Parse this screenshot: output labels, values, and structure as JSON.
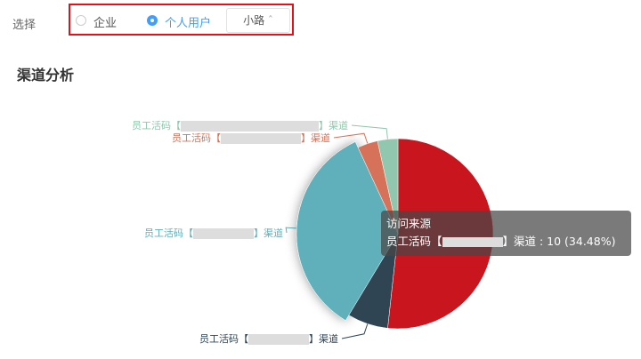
{
  "filter": {
    "label": "选择",
    "options": [
      {
        "label": "企业",
        "selected": false
      },
      {
        "label": "个人用户",
        "selected": true
      }
    ],
    "dropdown_value": "小路",
    "highlight_color": "#d9141c"
  },
  "section_title": "渠道分析",
  "chart_data": {
    "type": "pie",
    "series_name": "访问来源",
    "slices": [
      {
        "label": "",
        "value": 15,
        "color": "#c9151e"
      },
      {
        "label_prefix": "员工活码【",
        "label_suffix": "】渠道",
        "value": 2,
        "color": "#2f4554"
      },
      {
        "label_prefix": "员工活码【",
        "label_suffix": "】渠道",
        "value": 10,
        "color": "#61b0bb",
        "highlighted": true
      },
      {
        "label_prefix": "员工活码【",
        "label_suffix": "】渠道",
        "value": 1,
        "color": "#d7725a"
      },
      {
        "label_prefix": "员工活码【",
        "label_suffix": "】渠道",
        "value": 1,
        "color": "#91c7ae"
      }
    ],
    "tooltip": {
      "title": "访问来源",
      "prefix": "员工活码【",
      "suffix": "】渠道 : 10 (34.48%)"
    }
  }
}
